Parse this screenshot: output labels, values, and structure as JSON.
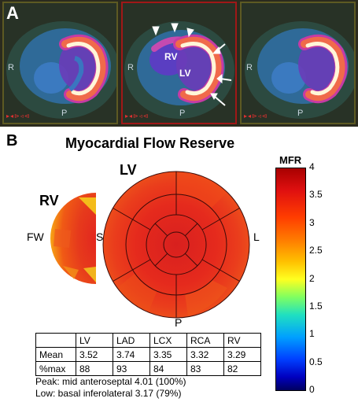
{
  "panel_a": {
    "letter": "A",
    "frames": [
      {
        "r_label": "R",
        "p_label": "P"
      },
      {
        "r_label": "R",
        "p_label": "P",
        "rv_label": "RV",
        "lv_label": "LV"
      },
      {
        "r_label": "R",
        "p_label": "P"
      }
    ]
  },
  "panel_b": {
    "letter": "B",
    "title": "Myocardial Flow Reserve",
    "lv_label": "LV",
    "rv_label": "RV",
    "fw_label": "FW",
    "s_label": "S",
    "l_label": "L",
    "p_label": "P",
    "colorbar": {
      "title": "MFR",
      "ticks": [
        "4",
        "3.5",
        "3",
        "2.5",
        "2",
        "1.5",
        "1",
        "0.5",
        "0"
      ]
    },
    "table": {
      "headers": [
        "",
        "LV",
        "LAD",
        "LCX",
        "RCA",
        "RV"
      ],
      "rows": [
        [
          "Mean",
          "3.52",
          "3.74",
          "3.35",
          "3.32",
          "3.29"
        ],
        [
          "%max",
          "88",
          "93",
          "84",
          "83",
          "82"
        ]
      ]
    },
    "peak": "Peak: mid anteroseptal 4.01 (100%)",
    "low": "Low: basal inferolateral 3.17 (79%)"
  },
  "colors": {
    "panel_bg": "#2b2b1e",
    "frame_border": "#5d5a23",
    "selected_frame_border": "#a01818"
  }
}
